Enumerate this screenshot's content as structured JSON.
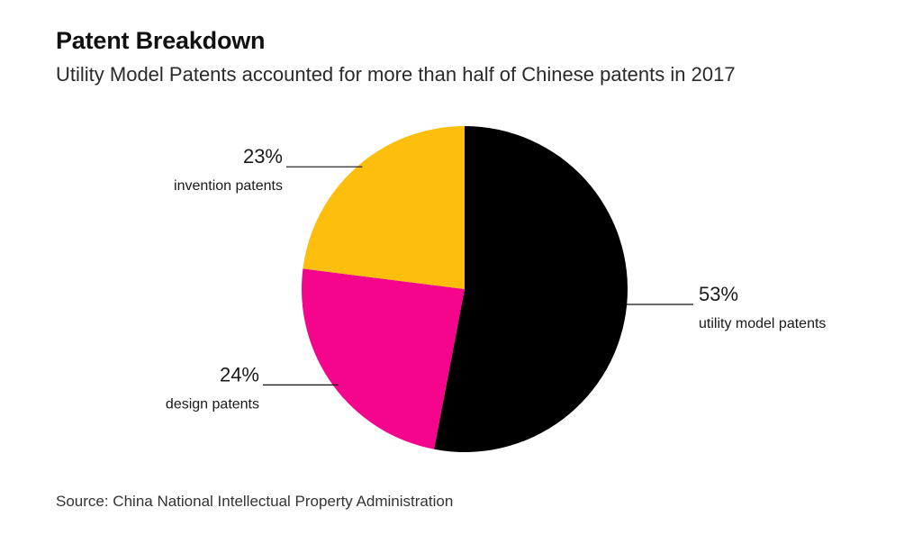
{
  "header": {
    "title": "Patent Breakdown",
    "subtitle": "Utility Model Patents accounted for more than half of Chinese patents in 2017"
  },
  "footer": {
    "source": "Source: China National Intellectual Property Administration"
  },
  "chart_data": {
    "type": "pie",
    "title": "Patent Breakdown",
    "subtitle": "Utility Model Patents accounted for more than half of Chinese patents in 2017",
    "start": "12 o'clock",
    "direction": "clockwise",
    "slices": [
      {
        "name": "utility model patents",
        "value": 53,
        "label": "53%",
        "color": "#000000",
        "label_side": "right"
      },
      {
        "name": "design patents",
        "value": 24,
        "label": "24%",
        "color": "#f5058c",
        "label_side": "left"
      },
      {
        "name": "invention patents",
        "value": 23,
        "label": "23%",
        "color": "#fdbe0d",
        "label_side": "left"
      }
    ]
  }
}
